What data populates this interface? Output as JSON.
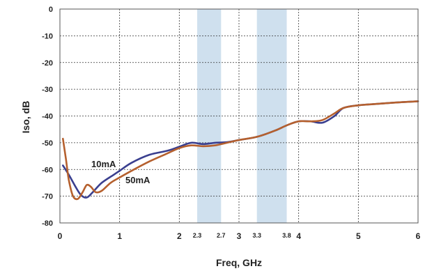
{
  "chart_data": {
    "type": "line",
    "xlabel": "Freq, GHz",
    "ylabel": "Iso, dB",
    "xlim": [
      0,
      6
    ],
    "ylim": [
      -80,
      0
    ],
    "grid": true,
    "x_ticks": [
      "0",
      "1",
      "2",
      "3",
      "4",
      "5",
      "6"
    ],
    "x_ticks_minor": [
      "2.3",
      "2.7",
      "3.3",
      "3.8"
    ],
    "y_ticks": [
      "0",
      "-10",
      "-20",
      "-30",
      "-40",
      "-50",
      "-60",
      "-70",
      "-80"
    ],
    "bands": [
      {
        "from": 2.3,
        "to": 2.7,
        "color": "#cfe0ee"
      },
      {
        "from": 3.3,
        "to": 3.8,
        "color": "#cfe0ee"
      }
    ],
    "annotations": [
      "10mA",
      "50mA"
    ],
    "series": [
      {
        "name": "10mA",
        "color": "#3a3f8f",
        "x": [
          0.05,
          0.15,
          0.25,
          0.35,
          0.45,
          0.55,
          0.7,
          0.9,
          1.0,
          1.2,
          1.5,
          1.8,
          2.0,
          2.2,
          2.4,
          2.6,
          2.8,
          3.0,
          3.3,
          3.6,
          3.8,
          4.0,
          4.2,
          4.4,
          4.6,
          4.75,
          5.0,
          5.3,
          5.6,
          6.0
        ],
        "y": [
          -58.5,
          -62,
          -66,
          -69.5,
          -70.5,
          -68.5,
          -65,
          -62,
          -60.5,
          -57.5,
          -54.5,
          -53,
          -51.5,
          -50,
          -50.5,
          -50,
          -49.8,
          -49,
          -47.8,
          -45.5,
          -43.5,
          -42,
          -42,
          -42.5,
          -40,
          -37,
          -36,
          -35.5,
          -35,
          -34.5
        ]
      },
      {
        "name": "50mA",
        "color": "#b5602e",
        "x": [
          0.05,
          0.1,
          0.15,
          0.22,
          0.3,
          0.38,
          0.45,
          0.52,
          0.6,
          0.7,
          0.85,
          1.0,
          1.2,
          1.5,
          1.8,
          2.0,
          2.2,
          2.4,
          2.6,
          2.8,
          3.0,
          3.3,
          3.6,
          3.8,
          4.0,
          4.2,
          4.4,
          4.6,
          4.75,
          5.0,
          5.3,
          5.6,
          6.0
        ],
        "y": [
          -48.5,
          -56,
          -64,
          -70,
          -71,
          -68.5,
          -65.8,
          -66.5,
          -68.5,
          -68,
          -65,
          -63,
          -60.5,
          -57,
          -54,
          -52,
          -51,
          -51.3,
          -51,
          -50,
          -49,
          -47.8,
          -45.5,
          -43.5,
          -42,
          -42,
          -41.5,
          -39,
          -37,
          -36,
          -35.5,
          -35,
          -34.5
        ]
      }
    ]
  }
}
